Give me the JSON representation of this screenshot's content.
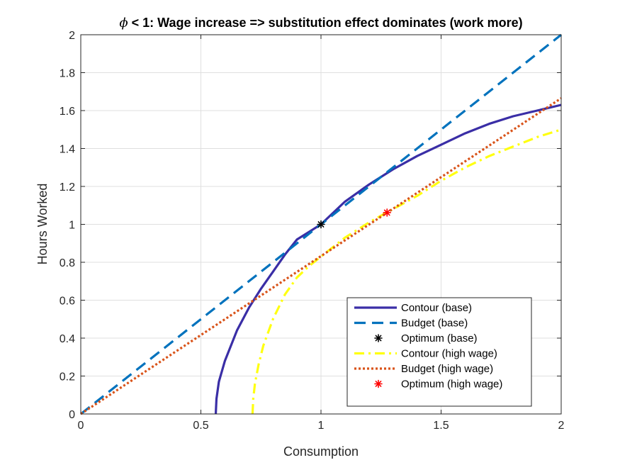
{
  "chart_data": {
    "type": "line",
    "title_symbol": "ϕ",
    "title": " < 1: Wage increase => substitution effect dominates (work more)",
    "xlabel": "Consumption",
    "ylabel": "Hours Worked",
    "xlim": [
      0,
      2
    ],
    "ylim": [
      0,
      2
    ],
    "grid": true,
    "legend_location": "bottom-right",
    "xticks": [
      0,
      0.5,
      1,
      1.5,
      2
    ],
    "xtick_labels": [
      "0",
      "0.5",
      "1",
      "1.5",
      "2"
    ],
    "yticks": [
      0,
      0.2,
      0.4,
      0.6,
      0.8,
      1,
      1.2,
      1.4,
      1.6,
      1.8,
      2
    ],
    "ytick_labels": [
      "0",
      "0.2",
      "0.4",
      "0.6",
      "0.8",
      "1",
      "1.2",
      "1.4",
      "1.6",
      "1.8",
      "2"
    ],
    "series": [
      {
        "name": "Contour (base)",
        "style": "solid",
        "color": "#3a2ea6",
        "x": [
          0.562,
          0.565,
          0.575,
          0.6,
          0.65,
          0.7,
          0.75,
          0.8,
          0.85,
          0.9,
          0.95,
          1.0,
          1.1,
          1.2,
          1.3,
          1.4,
          1.5,
          1.6,
          1.7,
          1.8,
          1.9,
          2.0
        ],
        "y": [
          0,
          0.08,
          0.17,
          0.28,
          0.44,
          0.56,
          0.66,
          0.75,
          0.84,
          0.92,
          0.96,
          1.0,
          1.12,
          1.21,
          1.29,
          1.36,
          1.42,
          1.48,
          1.53,
          1.57,
          1.6,
          1.63
        ]
      },
      {
        "name": "Budget (base)",
        "style": "dashed",
        "color": "#0072bd",
        "x": [
          0,
          2
        ],
        "y": [
          0,
          2
        ]
      },
      {
        "name": "Optimum (base)",
        "style": "marker",
        "color": "#000000",
        "x": [
          1.0
        ],
        "y": [
          1.0
        ]
      },
      {
        "name": "Contour (high wage)",
        "style": "dashdot",
        "color": "#ffff11",
        "x": [
          0.715,
          0.718,
          0.725,
          0.74,
          0.76,
          0.8,
          0.85,
          0.9,
          0.95,
          1.0,
          1.1,
          1.2,
          1.27,
          1.3,
          1.4,
          1.5,
          1.6,
          1.7,
          1.8,
          1.9,
          2.0
        ],
        "y": [
          0,
          0.08,
          0.16,
          0.26,
          0.36,
          0.5,
          0.63,
          0.72,
          0.78,
          0.83,
          0.93,
          1.01,
          1.06,
          1.08,
          1.15,
          1.23,
          1.3,
          1.36,
          1.41,
          1.46,
          1.5
        ]
      },
      {
        "name": "Budget (high wage)",
        "style": "dotted",
        "color": "#d95319",
        "x": [
          0,
          2
        ],
        "y": [
          0,
          1.665
        ]
      },
      {
        "name": "Optimum (high wage)",
        "style": "marker",
        "color": "#ff0000",
        "x": [
          1.275
        ],
        "y": [
          1.062
        ]
      }
    ]
  }
}
